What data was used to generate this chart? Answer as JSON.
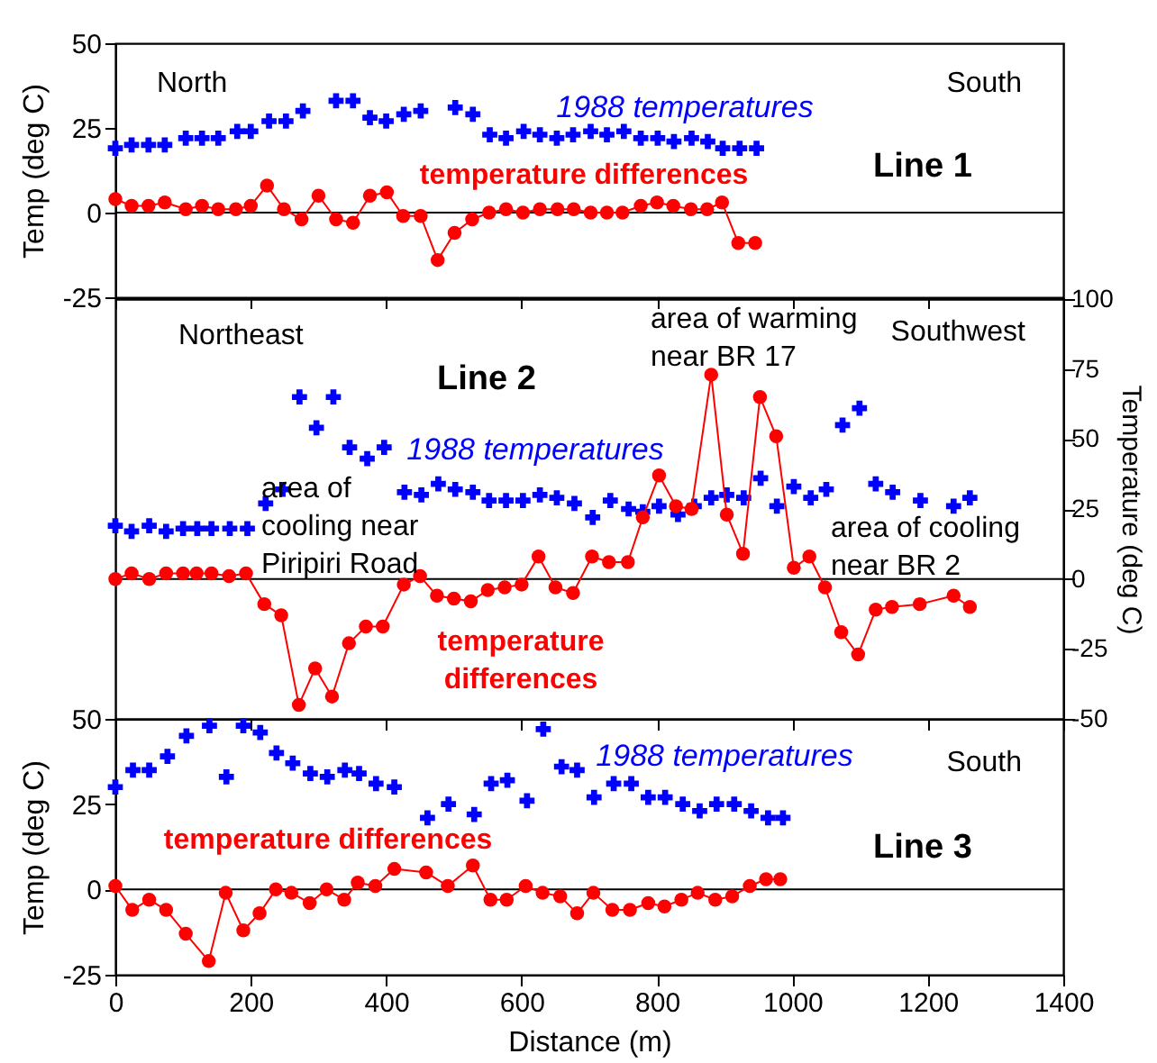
{
  "chart_data": [
    {
      "type": "line",
      "title": "Line 1",
      "ylabel": "Temp (deg C)",
      "xlim": [
        0,
        1400
      ],
      "xticks": [
        0,
        200,
        400,
        600,
        800,
        1000,
        1200,
        1400
      ],
      "ylim": [
        -25,
        50
      ],
      "yticks": [
        -25,
        0,
        25,
        50
      ],
      "tick_labels": "y",
      "ref_lines": [
        {
          "axis": "y",
          "value": 0,
          "color": "#000000"
        }
      ],
      "annotations": [
        "North",
        "South"
      ],
      "series": [
        {
          "name": "1988 temperatures",
          "type": "scatter",
          "marker": "cross",
          "color": "#0000ff",
          "x": [
            0,
            24,
            49,
            73,
            104,
            128,
            152,
            180,
            200,
            227,
            252,
            277,
            326,
            351,
            376,
            400,
            426,
            451,
            502,
            528,
            553,
            577,
            603,
            627,
            652,
            676,
            702,
            726,
            751,
            776,
            801,
            825,
            851,
            875,
            897,
            922,
            947
          ],
          "values": [
            19,
            20,
            20,
            20,
            22,
            22,
            22,
            24,
            24,
            27,
            27,
            30,
            33,
            33,
            28,
            27,
            29,
            30,
            31,
            29,
            23,
            22,
            24,
            23,
            22,
            23,
            24,
            23,
            24,
            22,
            22,
            21,
            22,
            21,
            19,
            19,
            19
          ]
        },
        {
          "name": "temperature differences",
          "type": "line",
          "marker": "circle",
          "color": "#ff0000",
          "x": [
            0,
            24,
            49,
            73,
            104,
            128,
            152,
            178,
            200,
            224,
            249,
            275,
            300,
            326,
            351,
            376,
            401,
            425,
            451,
            476,
            501,
            527,
            552,
            577,
            602,
            627,
            653,
            677,
            702,
            726,
            749,
            776,
            800,
            824,
            850,
            874,
            896,
            920,
            945
          ],
          "values": [
            4,
            2,
            2,
            3,
            1,
            2,
            1,
            1,
            2,
            8,
            1,
            -2,
            5,
            -2,
            -3,
            5,
            6,
            -1,
            -1,
            -14,
            -6,
            -2,
            0,
            1,
            0,
            1,
            1,
            1,
            0,
            0,
            0,
            2,
            3,
            2,
            1,
            1,
            3,
            -9,
            -9
          ]
        }
      ]
    },
    {
      "type": "line",
      "title": "Line 2",
      "ylabel": "Temperature (deg C)",
      "xlim": [
        0,
        1400
      ],
      "xticks": [
        0,
        200,
        400,
        600,
        800,
        1000,
        1200,
        1400
      ],
      "ylim": [
        -50,
        100
      ],
      "yticks": [
        -50,
        -25,
        0,
        25,
        50,
        75,
        100
      ],
      "tick_labels": "y",
      "ref_lines": [
        {
          "axis": "y",
          "value": 0,
          "color": "#000000"
        }
      ],
      "annotations": [
        "Northeast",
        "Southwest",
        "area of cooling near Piripiri Road",
        "area of warming near BR 17",
        "area of cooling near BR 2"
      ],
      "series": [
        {
          "name": "1988 temperatures",
          "type": "scatter",
          "marker": "cross",
          "color": "#0000ff",
          "x": [
            0,
            24,
            50,
            75,
            100,
            121,
            142,
            169,
            195,
            222,
            247,
            272,
            297,
            322,
            346,
            372,
            397,
            427,
            452,
            477,
            502,
            528,
            552,
            577,
            602,
            627,
            652,
            678,
            705,
            731,
            758,
            779,
            803,
            831,
            855,
            880,
            903,
            928,
            953,
            977,
            1002,
            1027,
            1050,
            1074,
            1099,
            1123,
            1148,
            1189,
            1238,
            1262
          ],
          "values": [
            19,
            17,
            19,
            17,
            18,
            18,
            18,
            18,
            18,
            27,
            32,
            65,
            54,
            65,
            47,
            43,
            47,
            31,
            30,
            34,
            32,
            31,
            28,
            28,
            28,
            30,
            29,
            27,
            22,
            28,
            25,
            24,
            26,
            23,
            26,
            29,
            30,
            29,
            36,
            26,
            33,
            29,
            32,
            55,
            61,
            34,
            31,
            28,
            26,
            29
          ]
        },
        {
          "name": "temperature differences",
          "type": "line",
          "marker": "circle",
          "color": "#ff0000",
          "x": [
            0,
            24,
            50,
            75,
            100,
            120,
            142,
            168,
            193,
            220,
            245,
            271,
            295,
            320,
            345,
            370,
            395,
            426,
            450,
            475,
            500,
            525,
            550,
            575,
            600,
            625,
            650,
            676,
            704,
            729,
            757,
            779,
            803,
            828,
            851,
            880,
            903,
            927,
            952,
            976,
            1002,
            1025,
            1048,
            1072,
            1097,
            1123,
            1147,
            1188,
            1238,
            1262
          ],
          "values": [
            0,
            2,
            0,
            2,
            2,
            2,
            2,
            1,
            2,
            -9,
            -13,
            -45,
            -32,
            -42,
            -23,
            -17,
            -17,
            -2,
            1,
            -6,
            -7,
            -8,
            -4,
            -3,
            -2,
            8,
            -3,
            -5,
            8,
            6,
            6,
            22,
            37,
            26,
            25,
            73,
            23,
            9,
            65,
            51,
            4,
            8,
            -3,
            -19,
            -27,
            -11,
            -10,
            -9,
            -6,
            -10
          ]
        }
      ]
    },
    {
      "type": "line",
      "title": "Line 3",
      "ylabel": "Temp (deg C)",
      "xlabel": "Distance  (m)",
      "xlim": [
        0,
        1400
      ],
      "xticks": [
        0,
        200,
        400,
        600,
        800,
        1000,
        1200,
        1400
      ],
      "ylim": [
        -25,
        50
      ],
      "yticks": [
        -25,
        0,
        25,
        50
      ],
      "ref_lines": [
        {
          "axis": "y",
          "value": 0,
          "color": "#000000"
        }
      ],
      "annotations": [
        "South"
      ],
      "series": [
        {
          "name": "1988 temperatures",
          "type": "scatter",
          "marker": "cross",
          "color": "#0000ff",
          "x": [
            0,
            26,
            50,
            77,
            105,
            139,
            164,
            189,
            214,
            238,
            262,
            288,
            313,
            339,
            360,
            385,
            412,
            461,
            492,
            530,
            555,
            579,
            608,
            632,
            659,
            682,
            707,
            736,
            762,
            787,
            812,
            838,
            863,
            888,
            914,
            939,
            964,
            986
          ],
          "values": [
            30,
            35,
            35,
            39,
            45,
            48,
            33,
            48,
            46,
            40,
            37,
            34,
            33,
            35,
            34,
            31,
            30,
            21,
            25,
            22,
            31,
            32,
            26,
            47,
            36,
            35,
            27,
            31,
            31,
            27,
            27,
            25,
            23,
            25,
            25,
            23,
            21,
            21
          ]
        },
        {
          "name": "temperature differences",
          "type": "line",
          "marker": "circle",
          "color": "#ff0000",
          "x": [
            0,
            25,
            50,
            75,
            104,
            138,
            163,
            189,
            213,
            237,
            260,
            287,
            312,
            338,
            358,
            384,
            412,
            459,
            491,
            528,
            554,
            578,
            606,
            631,
            657,
            682,
            706,
            734,
            760,
            787,
            811,
            836,
            860,
            886,
            911,
            937,
            961,
            982
          ],
          "values": [
            1,
            -6,
            -3,
            -6,
            -13,
            -21,
            -1,
            -12,
            -7,
            0,
            -1,
            -4,
            0,
            -3,
            2,
            1,
            6,
            5,
            1,
            7,
            -3,
            -3,
            1,
            -1,
            -2,
            -7,
            -1,
            -6,
            -6,
            -4,
            -5,
            -3,
            -1,
            -3,
            -2,
            1,
            3,
            3
          ]
        }
      ]
    }
  ]
}
